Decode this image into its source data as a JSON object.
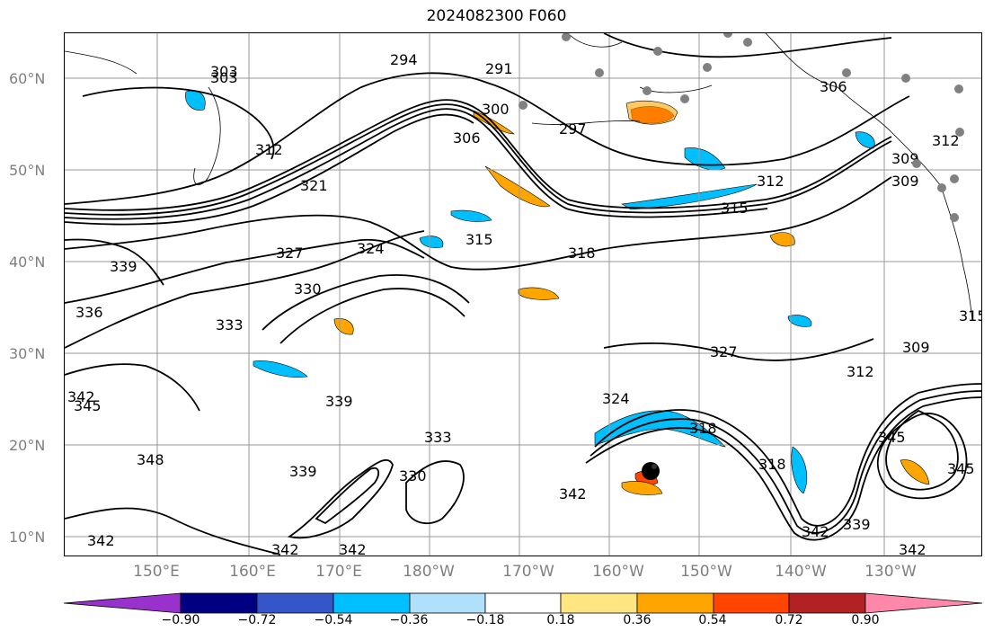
{
  "title": "2024082300 F060",
  "lat_labels": [
    "60°N",
    "50°N",
    "40°N",
    "30°N",
    "20°N",
    "10°N"
  ],
  "lon_labels": [
    "150°E",
    "160°E",
    "170°E",
    "180°W",
    "170°W",
    "160°W",
    "150°W",
    "140°W",
    "130°W"
  ],
  "colorbar": {
    "colors": [
      "#9932cc",
      "#000080",
      "#3456c9",
      "#00bfff",
      "#b0e0fa",
      "#ffffff",
      "#ffe680",
      "#ffa500",
      "#ff4500",
      "#b22222",
      "#ff88aa"
    ],
    "tick_labels": [
      "−0.90",
      "−0.72",
      "−0.54",
      "−0.36",
      "−0.18",
      "0.18",
      "0.36",
      "0.54",
      "0.72",
      "0.90"
    ]
  },
  "contour_labels": [
    "294",
    "291",
    "300",
    "297",
    "303",
    "306",
    "312",
    "321",
    "309",
    "312",
    "315",
    "318",
    "315",
    "324",
    "327",
    "339",
    "336",
    "330",
    "333",
    "342",
    "327",
    "309",
    "312",
    "318",
    "324",
    "318",
    "345",
    "345",
    "342",
    "339",
    "342",
    "342",
    "330",
    "333",
    "339",
    "342",
    "342",
    "342",
    "345",
    "348",
    "306",
    "309",
    "312",
    "315",
    "303",
    "339"
  ]
}
